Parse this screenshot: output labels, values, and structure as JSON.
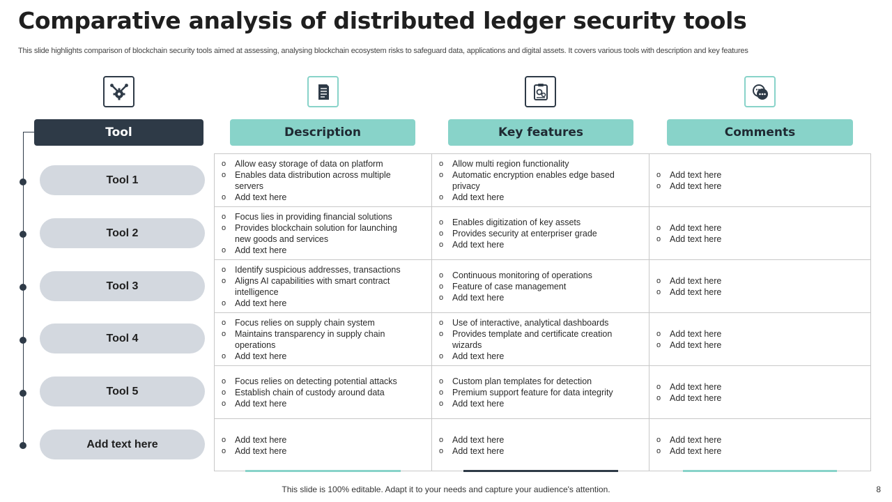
{
  "title": "Comparative analysis of distributed ledger security tools",
  "subtitle": "This slide highlights comparison of blockchain security tools aimed at assessing, analysing blockchain ecosystem risks to safeguard data, applications and digital assets. It covers various tools with description and key features",
  "icons": [
    "tools-gear-icon",
    "document-icon",
    "clipboard-settings-icon",
    "chat-bubbles-icon"
  ],
  "colors": {
    "dark": "#2e3a47",
    "teal": "#88d3c9",
    "pill": "#d3d8df"
  },
  "headers": {
    "tool": "Tool",
    "description": "Description",
    "key_features": "Key features",
    "comments": "Comments"
  },
  "rows": [
    {
      "tool": "Tool 1",
      "description": [
        "Allow easy storage of data on platform",
        "Enables data distribution across multiple servers",
        "Add text here"
      ],
      "features": [
        "Allow multi region functionality",
        "Automatic encryption enables edge based privacy",
        "Add text here"
      ],
      "comments": [
        "Add text here",
        "Add text here"
      ]
    },
    {
      "tool": "Tool 2",
      "description": [
        "Focus lies in providing  financial solutions",
        "Provides blockchain solution for launching new goods and services",
        "Add text here"
      ],
      "features": [
        "Enables digitization of key assets",
        "Provides  security at enterpriser  grade",
        "Add text here"
      ],
      "comments": [
        "Add text here",
        "Add text here"
      ]
    },
    {
      "tool": "Tool 3",
      "description": [
        "Identify suspicious addresses, transactions",
        "Aligns AI capabilities with smart contract intelligence",
        "Add text here"
      ],
      "features": [
        "Continuous  monitoring of operations",
        "Feature of case management",
        "Add text here"
      ],
      "comments": [
        "Add text here",
        "Add text here"
      ]
    },
    {
      "tool": "Tool 4",
      "description": [
        "Focus relies on supply chain system",
        "Maintains transparency  in supply chain operations",
        "Add text here"
      ],
      "features": [
        "Use of interactive,  analytical dashboards",
        "Provides  template and certificate creation wizards",
        "Add text here"
      ],
      "comments": [
        "Add text here",
        "Add text here"
      ]
    },
    {
      "tool": "Tool 5",
      "description": [
        "Focus relies on detecting potential attacks",
        "Establish chain of custody around data",
        "Add text here"
      ],
      "features": [
        "Custom plan templates for detection",
        "Premium support feature for data integrity",
        "Add text here"
      ],
      "comments": [
        "Add text here",
        "Add text here"
      ]
    },
    {
      "tool": "Add text here",
      "description": [
        "Add text here",
        "Add text here"
      ],
      "features": [
        "Add text here",
        "Add text here"
      ],
      "comments": [
        "Add text here",
        "Add text here"
      ]
    }
  ],
  "footer": "This slide is 100% editable. Adapt it to your needs and capture your audience's attention.",
  "page_number": "8"
}
